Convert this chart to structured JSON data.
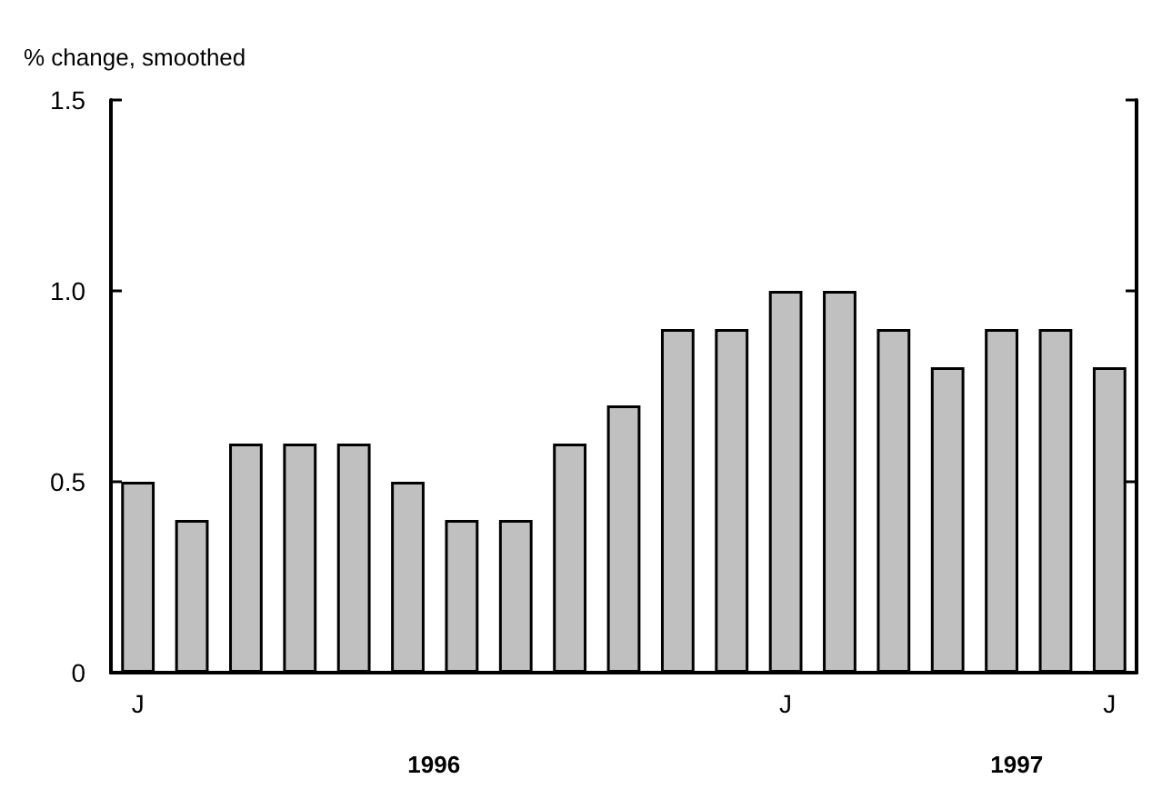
{
  "chart_data": {
    "type": "bar",
    "ylabel": "% change, smoothed",
    "categories": [
      "J",
      null,
      null,
      null,
      null,
      null,
      null,
      null,
      null,
      null,
      null,
      null,
      "J",
      null,
      null,
      null,
      null,
      null,
      "J"
    ],
    "values": [
      0.5,
      0.4,
      0.6,
      0.6,
      0.6,
      0.5,
      0.4,
      0.4,
      0.6,
      0.7,
      0.9,
      0.9,
      1.0,
      1.0,
      0.9,
      0.8,
      0.9,
      0.9,
      0.8
    ],
    "color": "#c0c0c0",
    "ylim": [
      0,
      1.5
    ],
    "yticks": [
      0,
      0.5,
      {
        "value": 1,
        "label": "1.0"
      },
      1.5
    ],
    "annotations": [
      "1996",
      "1997"
    ],
    "grid": false
  }
}
